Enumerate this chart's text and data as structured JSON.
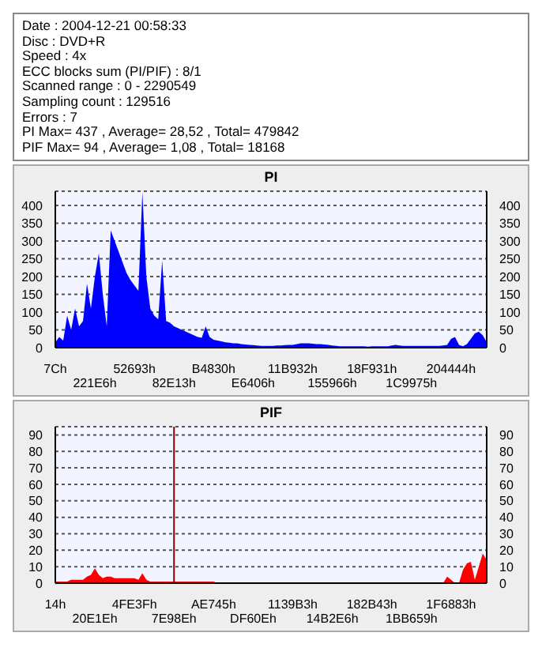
{
  "chart_data": [
    {
      "type": "other",
      "annotations": [
        "Date : 2004-12-21 00:58:33",
        "Disc : DVD+R",
        "Speed : 4x",
        "ECC blocks sum (PI/PIF) : 8/1",
        "Scanned range : 0 - 2290549",
        "Sampling count : 129516",
        "Errors : 7",
        "PI Max= 437 , Average= 28,52 , Total= 479842",
        "PIF Max= 94 , Average= 1,08 , Total= 18168"
      ]
    },
    {
      "type": "area",
      "title": "PI",
      "color": "#0000ff",
      "grid": "y",
      "ylim": [
        0,
        440
      ],
      "yticks": [
        0,
        50,
        100,
        150,
        200,
        250,
        300,
        350,
        400
      ],
      "y2lim": [
        0,
        440
      ],
      "y2ticks": [
        0,
        50,
        100,
        150,
        200,
        250,
        300,
        350,
        400
      ],
      "categories": [
        "7Ch",
        null,
        null,
        null,
        null,
        null,
        null,
        null,
        null,
        null,
        "221E6h",
        null,
        null,
        null,
        null,
        null,
        null,
        null,
        null,
        null,
        "52693h",
        null,
        null,
        null,
        null,
        null,
        null,
        null,
        null,
        null,
        "82E13h",
        null,
        null,
        null,
        null,
        null,
        null,
        null,
        null,
        null,
        "B4830h",
        null,
        null,
        null,
        null,
        null,
        null,
        null,
        null,
        null,
        "E6406h",
        null,
        null,
        null,
        null,
        null,
        null,
        null,
        null,
        null,
        "11B932h",
        null,
        null,
        null,
        null,
        null,
        null,
        null,
        null,
        null,
        "155966h",
        null,
        null,
        null,
        null,
        null,
        null,
        null,
        null,
        null,
        "18F931h",
        null,
        null,
        null,
        null,
        null,
        null,
        null,
        null,
        null,
        "1C9975h",
        null,
        null,
        null,
        null,
        null,
        null,
        null,
        null,
        null,
        "204444h",
        null,
        null,
        null,
        null,
        null,
        null,
        null,
        null,
        null
      ],
      "values": [
        15,
        30,
        20,
        90,
        50,
        110,
        60,
        75,
        180,
        110,
        200,
        265,
        150,
        60,
        330,
        300,
        270,
        240,
        210,
        190,
        175,
        160,
        437,
        200,
        110,
        90,
        80,
        245,
        75,
        70,
        60,
        55,
        50,
        45,
        40,
        35,
        30,
        28,
        60,
        30,
        22,
        20,
        18,
        15,
        14,
        12,
        12,
        10,
        9,
        8,
        7,
        6,
        5,
        5,
        5,
        5,
        6,
        6,
        7,
        8,
        8,
        10,
        12,
        12,
        12,
        11,
        10,
        10,
        9,
        8,
        6,
        5,
        4,
        4,
        4,
        4,
        4,
        4,
        4,
        3,
        4,
        4,
        4,
        4,
        4,
        6,
        8,
        6,
        5,
        5,
        5,
        5,
        5,
        5,
        5,
        5,
        5,
        5,
        6,
        8,
        25,
        30,
        8,
        4,
        10,
        25,
        40,
        45,
        35,
        15
      ]
    },
    {
      "type": "area",
      "title": "PIF",
      "color": "#ff0000",
      "grid": "y",
      "ylim": [
        0,
        95
      ],
      "yticks": [
        0,
        10,
        20,
        30,
        40,
        50,
        60,
        70,
        80,
        90
      ],
      "y2lim": [
        0,
        95
      ],
      "y2ticks": [
        0,
        10,
        20,
        30,
        40,
        50,
        60,
        70,
        80,
        90
      ],
      "ref_lines": [
        {
          "axis": "x",
          "value": "7E98Eh",
          "color": "#800000"
        }
      ],
      "categories": [
        "14h",
        null,
        null,
        null,
        null,
        null,
        null,
        null,
        null,
        null,
        "20E1Eh",
        null,
        null,
        null,
        null,
        null,
        null,
        null,
        null,
        null,
        "4FE3Fh",
        null,
        null,
        null,
        null,
        null,
        null,
        null,
        null,
        null,
        "7E98Eh",
        null,
        null,
        null,
        null,
        null,
        null,
        null,
        null,
        null,
        "AE745h",
        null,
        null,
        null,
        null,
        null,
        null,
        null,
        null,
        null,
        "DF60Eh",
        null,
        null,
        null,
        null,
        null,
        null,
        null,
        null,
        null,
        "1139B3h",
        null,
        null,
        null,
        null,
        null,
        null,
        null,
        null,
        null,
        "14B2E6h",
        null,
        null,
        null,
        null,
        null,
        null,
        null,
        null,
        null,
        "182B43h",
        null,
        null,
        null,
        null,
        null,
        null,
        null,
        null,
        null,
        "1BB659h",
        null,
        null,
        null,
        null,
        null,
        null,
        null,
        null,
        null,
        "1F6883h",
        null,
        null,
        null,
        null,
        null,
        null,
        null,
        null,
        null
      ],
      "values": [
        1,
        1,
        1,
        1,
        2,
        2,
        2,
        2,
        4,
        5,
        9,
        5,
        3,
        4,
        4,
        3,
        3,
        3,
        3,
        3,
        3,
        2,
        6,
        2,
        1,
        1,
        1,
        1,
        1,
        1,
        1,
        1,
        1,
        1,
        1,
        1,
        1,
        1,
        1,
        1,
        1,
        0,
        0,
        0,
        0,
        0,
        0,
        0,
        0,
        0,
        0,
        0,
        0,
        0,
        0,
        0,
        0,
        0,
        0,
        0,
        0,
        0,
        0,
        0,
        0,
        0,
        0,
        0,
        0,
        0,
        0,
        0,
        0,
        0,
        0,
        0,
        0,
        0,
        0,
        0,
        0,
        0,
        0,
        0,
        0,
        0,
        0,
        0,
        0,
        0,
        0,
        0,
        0,
        0,
        0,
        0,
        0,
        0,
        0,
        4,
        2,
        0,
        0,
        8,
        12,
        13,
        2,
        10,
        18,
        14
      ]
    }
  ]
}
